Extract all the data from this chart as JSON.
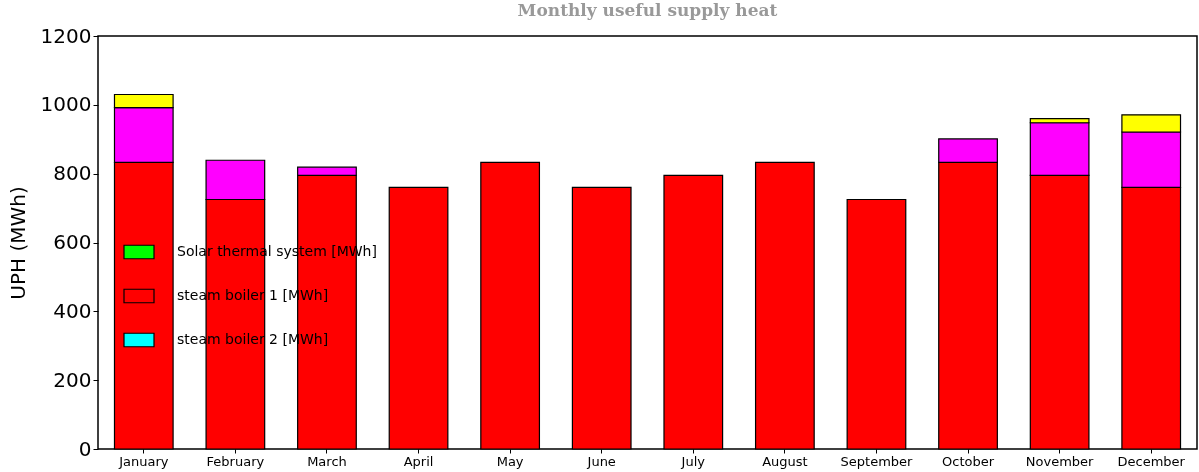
{
  "chart_data": {
    "type": "bar",
    "title": "Monthly useful supply heat",
    "ylabel": "UPH (MWh)",
    "categories": [
      "January",
      "February",
      "March",
      "April",
      "May",
      "June",
      "July",
      "August",
      "September",
      "October",
      "November",
      "December"
    ],
    "stacked": true,
    "legend": "bottom left",
    "ylim": [
      0,
      1200
    ],
    "yticks": [
      0,
      200,
      400,
      600,
      800,
      1000,
      1200
    ],
    "series": [
      {
        "name": "Solar thermal system [MWh]",
        "color": "#00ff00",
        "values": [
          0,
          0,
          0,
          0,
          0,
          0,
          0,
          0,
          0,
          0,
          0,
          0
        ]
      },
      {
        "name": "steam boiler 1 [MWh]",
        "color": "#ff0000",
        "values": [
          833,
          725,
          795,
          760,
          833,
          760,
          795,
          833,
          725,
          833,
          795,
          760
        ]
      },
      {
        "name": "steam boiler 2 [MWh]",
        "color": "#00ffff",
        "values": [
          0,
          0,
          0,
          0,
          0,
          0,
          0,
          0,
          0,
          0,
          0,
          0
        ]
      },
      {
        "color": "#ff00ff",
        "values": [
          159,
          114,
          24,
          0,
          0,
          0,
          0,
          0,
          0,
          68,
          153,
          161
        ]
      },
      {
        "color": "#ffff00",
        "values": [
          38,
          0,
          0,
          0,
          0,
          0,
          0,
          0,
          0,
          0,
          12,
          50
        ]
      }
    ]
  }
}
